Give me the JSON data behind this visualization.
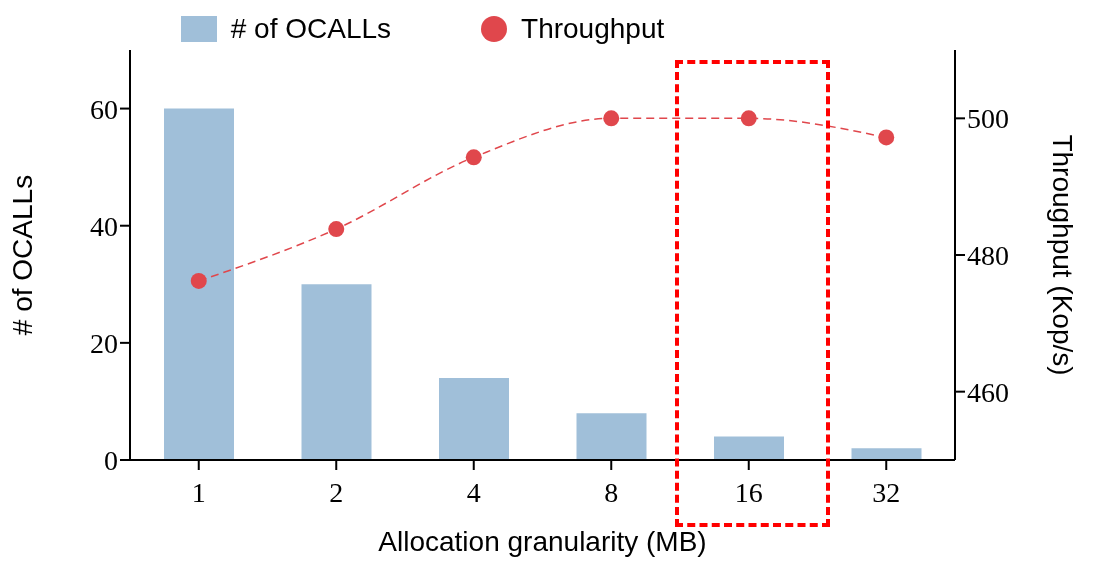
{
  "chart_data": {
    "type": "bar",
    "xlabel": "Allocation granularity (MB)",
    "ylabel": "# of OCALLs",
    "y2label": "Throughput (Kop/s)",
    "categories": [
      "1",
      "2",
      "4",
      "8",
      "16",
      "32"
    ],
    "series": [
      {
        "name": "# of OCALLs",
        "color": "#a0bfd9",
        "values": [
          60,
          30,
          14,
          8,
          4,
          2
        ]
      },
      {
        "name": "Throughput",
        "type": "line",
        "axis": "y2",
        "color": "#e0474c",
        "values": [
          476.2,
          483.8,
          494.3,
          500,
          500,
          497.2
        ],
        "marker": "circle",
        "line_style": "dashed"
      }
    ],
    "ylim": [
      0,
      70
    ],
    "yticks": [
      0,
      20,
      40,
      60
    ],
    "y2lim": [
      450,
      510
    ],
    "y2ticks": [
      460,
      480,
      500
    ],
    "legend": "top",
    "grid": false
  }
}
